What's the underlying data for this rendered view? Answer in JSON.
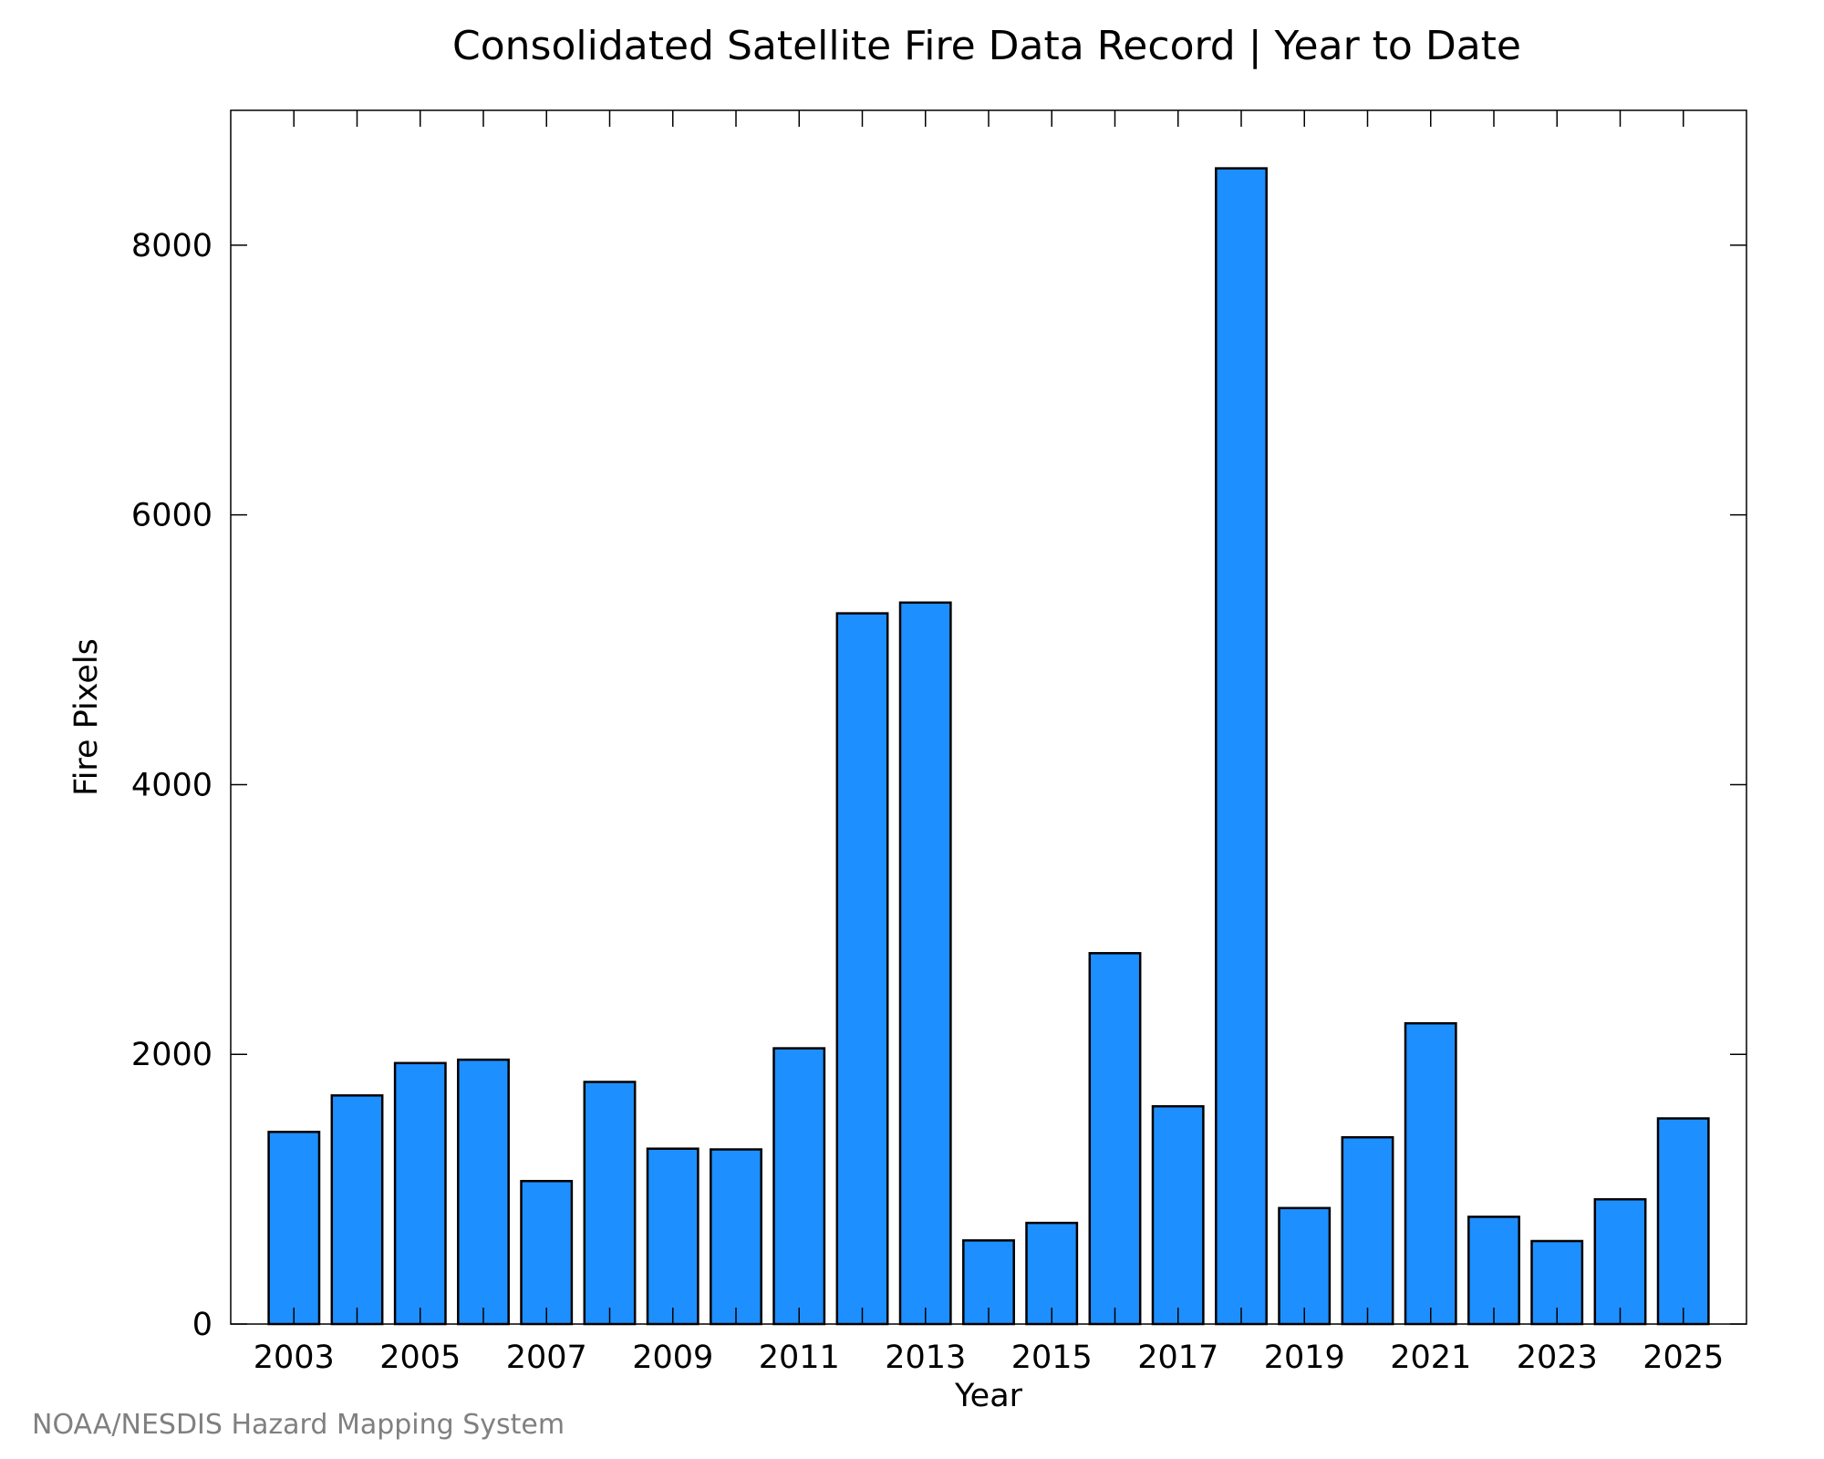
{
  "chart_data": {
    "type": "bar",
    "title": "Consolidated Satellite Fire Data Record | Year to Date",
    "xlabel": "Year",
    "ylabel": "Fire Pixels",
    "categories": [
      "2003",
      "2004",
      "2005",
      "2006",
      "2007",
      "2008",
      "2009",
      "2010",
      "2011",
      "2012",
      "2013",
      "2014",
      "2015",
      "2016",
      "2017",
      "2018",
      "2019",
      "2020",
      "2021",
      "2022",
      "2023",
      "2024",
      "2025"
    ],
    "values": [
      1425,
      1695,
      1935,
      1960,
      1060,
      1795,
      1300,
      1295,
      2045,
      5270,
      5350,
      620,
      750,
      2750,
      1615,
      8570,
      860,
      1385,
      2230,
      795,
      615,
      925,
      1525
    ],
    "x_tick_labels": [
      "2003",
      "2005",
      "2007",
      "2009",
      "2011",
      "2013",
      "2015",
      "2017",
      "2019",
      "2021",
      "2023",
      "2025"
    ],
    "y_ticks": [
      0,
      2000,
      4000,
      6000,
      8000
    ],
    "y_tick_labels": [
      "0",
      "2000",
      "4000",
      "6000",
      "8000"
    ],
    "ylim": [
      0,
      9000
    ],
    "grid": false,
    "bar_color": "#1e8fff",
    "bar_edge_color": "#000000"
  },
  "credit": "NOAA/NESDIS Hazard Mapping System"
}
